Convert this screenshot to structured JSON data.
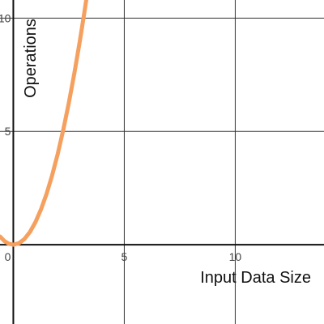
{
  "chart_data": {
    "type": "line",
    "xlabel": "Input Data Size",
    "ylabel": "Operations",
    "xlim": [
      -0.6,
      14
    ],
    "ylim": [
      -3.5,
      10.8
    ],
    "x_ticks": [
      {
        "value": 0,
        "label": "0"
      },
      {
        "value": 5,
        "label": "5"
      },
      {
        "value": 10,
        "label": "10"
      }
    ],
    "y_ticks": [
      {
        "value": 5,
        "label": "5"
      },
      {
        "value": 10,
        "label": "10"
      }
    ],
    "grid": true,
    "series": [
      {
        "color": "#F5A05F",
        "function": "y = x^2",
        "x": [
          -0.6,
          -0.4,
          -0.2,
          0,
          0.25,
          0.5,
          0.75,
          1,
          1.25,
          1.5,
          1.75,
          2,
          2.25,
          2.5,
          2.75,
          3,
          3.2,
          3.3
        ],
        "y": [
          0.36,
          0.16,
          0.04,
          0,
          0.0625,
          0.25,
          0.5625,
          1,
          1.5625,
          2.25,
          3.0625,
          4,
          5.0625,
          6.25,
          7.5625,
          9,
          10.24,
          10.89
        ]
      }
    ]
  }
}
